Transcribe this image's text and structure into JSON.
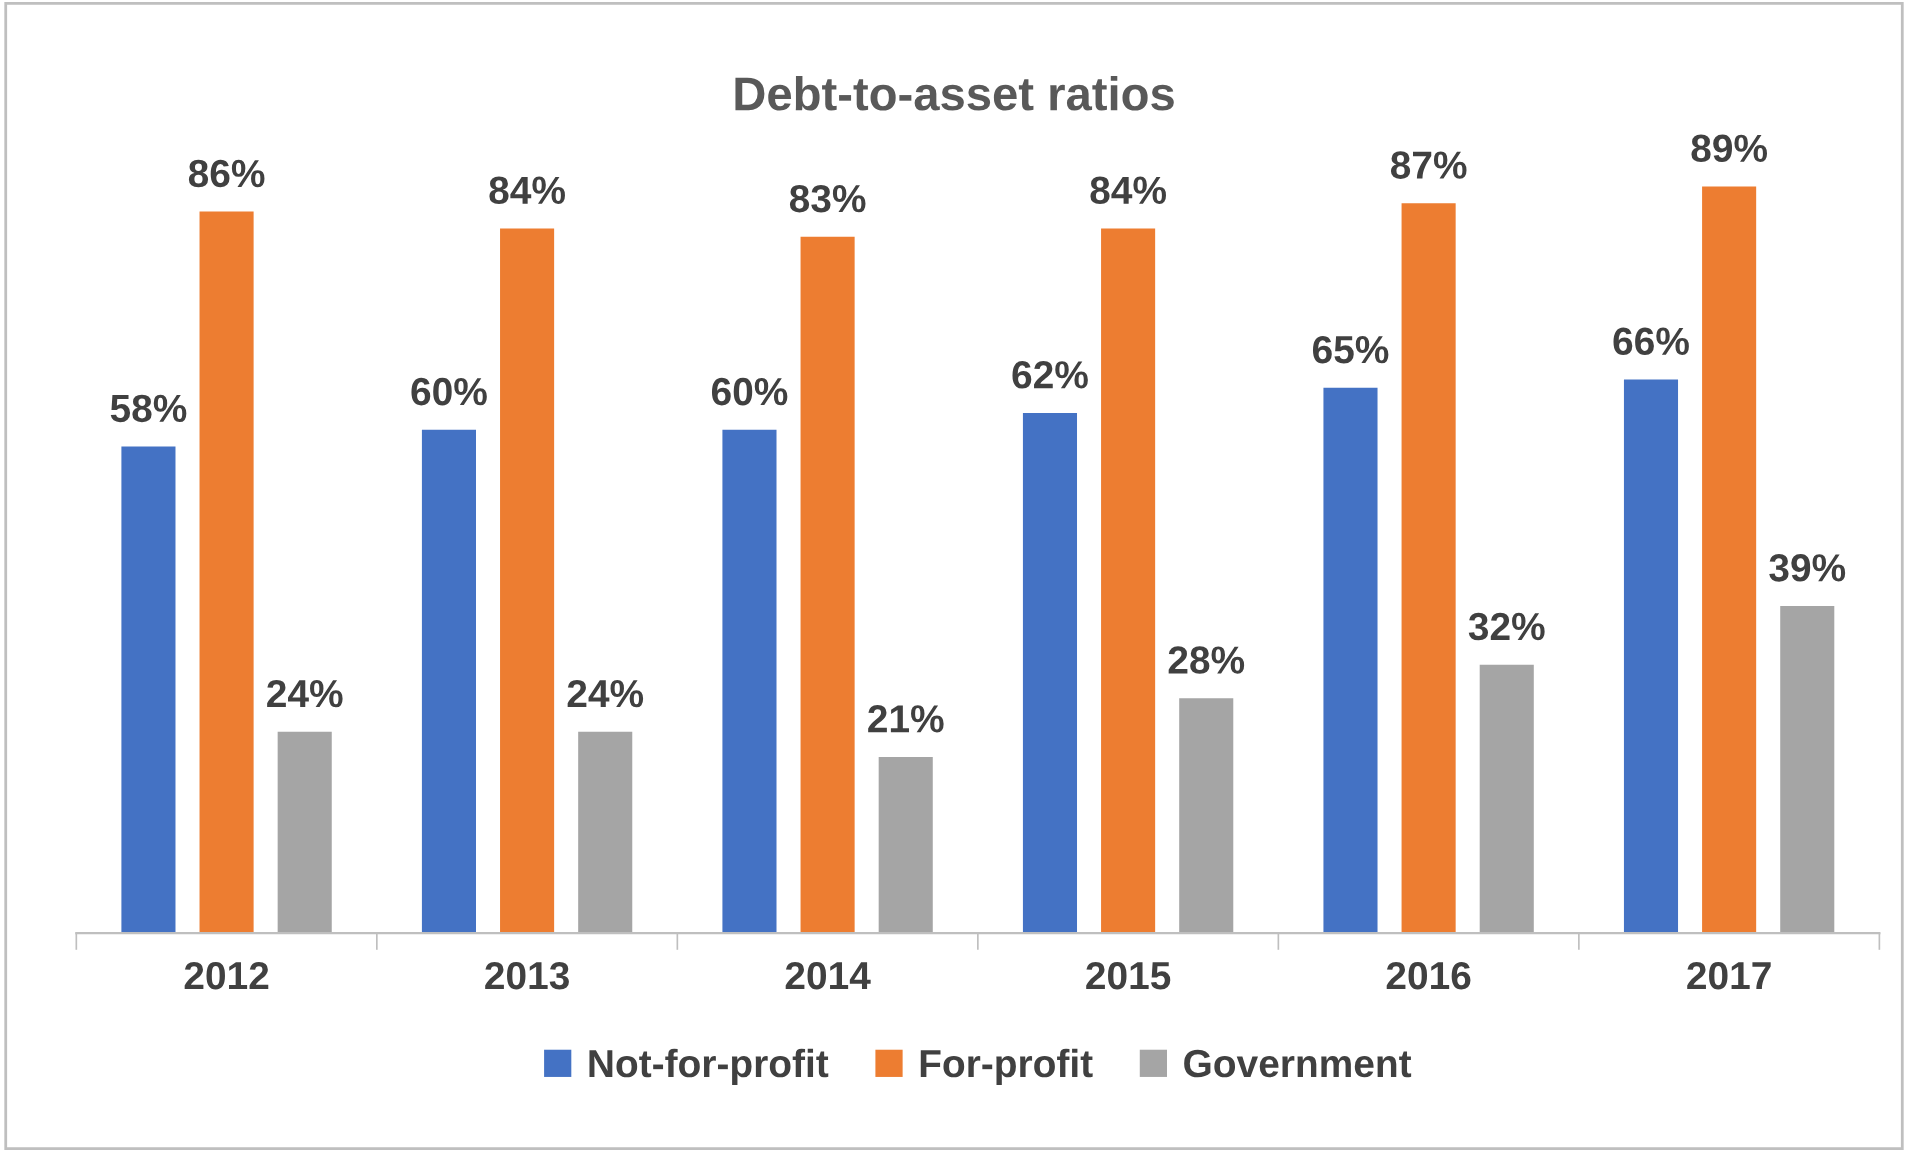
{
  "chart_data": {
    "type": "bar",
    "title": "Debt-to-asset ratios",
    "categories": [
      "2012",
      "2013",
      "2014",
      "2015",
      "2016",
      "2017"
    ],
    "series": [
      {
        "name": "Not-for-profit",
        "color": "#4472c4",
        "values": [
          58,
          60,
          60,
          62,
          65,
          66
        ],
        "value_labels": [
          "58%",
          "60%",
          "60%",
          "62%",
          "65%",
          "66%"
        ]
      },
      {
        "name": "For-profit",
        "color": "#ed7d31",
        "values": [
          86,
          84,
          83,
          84,
          87,
          89
        ],
        "value_labels": [
          "86%",
          "84%",
          "83%",
          "84%",
          "87%",
          "89%"
        ]
      },
      {
        "name": "Government",
        "color": "#a5a5a5",
        "values": [
          24,
          24,
          21,
          28,
          32,
          39
        ],
        "value_labels": [
          "24%",
          "24%",
          "21%",
          "28%",
          "32%",
          "39%"
        ]
      }
    ],
    "legend": "bottom"
  }
}
